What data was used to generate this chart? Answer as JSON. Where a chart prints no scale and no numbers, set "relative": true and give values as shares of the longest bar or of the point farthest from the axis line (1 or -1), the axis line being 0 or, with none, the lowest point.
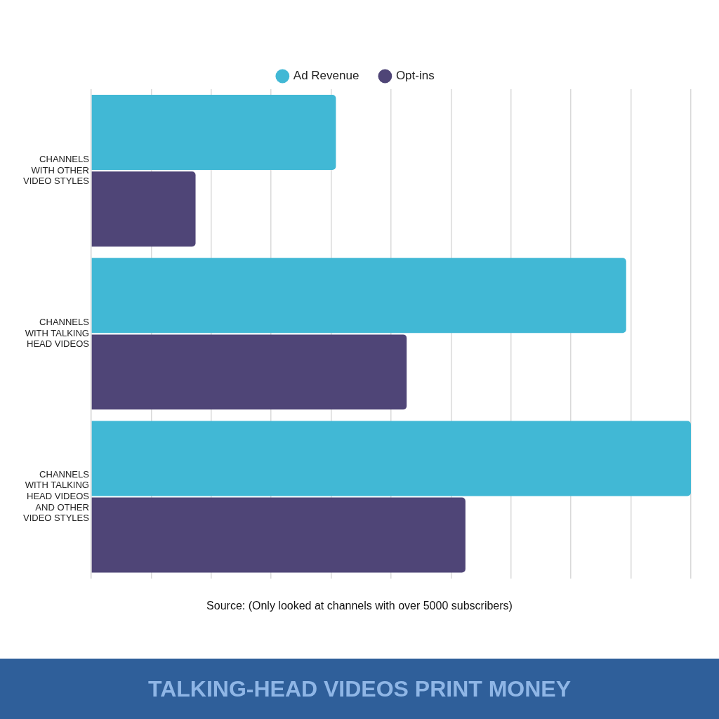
{
  "chart_data": {
    "type": "bar",
    "orientation": "horizontal",
    "relative": true,
    "title": "TALKING-HEAD VIDEOS PRINT MONEY",
    "categories": [
      "CHANNELS WITH OTHER VIDEO STYLES",
      "CHANNELS WITH TALKING HEAD VIDEOS",
      "CHANNELS WITH TALKING HEAD VIDEOS AND OTHER VIDEO STYLES"
    ],
    "series": [
      {
        "name": "Ad Revenue",
        "color": "#41b8d5",
        "values": [
          0.408,
          0.892,
          1
        ]
      },
      {
        "name": "Opt-ins",
        "color": "#4f4577",
        "values": [
          0.174,
          0.526,
          0.624
        ]
      }
    ],
    "grid": true,
    "legend": "top",
    "annotations": [
      "Source: (Only looked at channels with over 5000 subscribers)"
    ]
  }
}
